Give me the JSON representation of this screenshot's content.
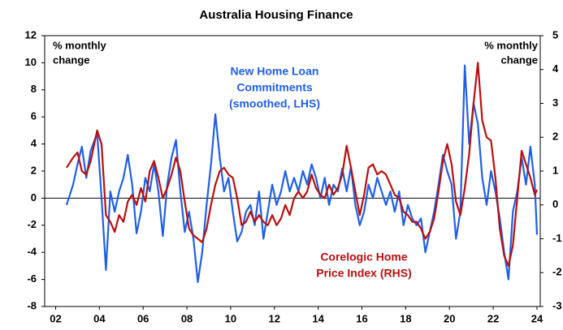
{
  "chart_data": {
    "type": "line",
    "title": "Australia Housing Finance",
    "ylabel_lines": [
      "% monthly",
      "change"
    ],
    "y2label_lines": [
      "% monthly",
      "change"
    ],
    "xlim": [
      2001.5,
      2024.15
    ],
    "xticks": [
      {
        "value": 2002,
        "label": "02"
      },
      {
        "value": 2004,
        "label": "04"
      },
      {
        "value": 2006,
        "label": "06"
      },
      {
        "value": 2008,
        "label": "08"
      },
      {
        "value": 2010,
        "label": "10"
      },
      {
        "value": 2012,
        "label": "12"
      },
      {
        "value": 2014,
        "label": "14"
      },
      {
        "value": 2016,
        "label": "16"
      },
      {
        "value": 2018,
        "label": "18"
      },
      {
        "value": 2020,
        "label": "20"
      },
      {
        "value": 2022,
        "label": "22"
      },
      {
        "value": 2024,
        "label": "24"
      }
    ],
    "ylim": [
      -8,
      12
    ],
    "yticks": [
      -8,
      -6,
      -4,
      -2,
      0,
      2,
      4,
      6,
      8,
      10,
      12
    ],
    "y2lim": [
      -3,
      5
    ],
    "y2ticks": [
      -3,
      -2,
      -1,
      0,
      1,
      2,
      3,
      4,
      5
    ],
    "x": [
      2002.5,
      2002.8,
      2003.0,
      2003.2,
      2003.4,
      2003.6,
      2003.9,
      2004.1,
      2004.3,
      2004.5,
      2004.7,
      2004.9,
      2005.1,
      2005.3,
      2005.5,
      2005.7,
      2005.9,
      2006.1,
      2006.3,
      2006.5,
      2006.7,
      2006.9,
      2007.1,
      2007.3,
      2007.5,
      2007.7,
      2007.9,
      2008.1,
      2008.3,
      2008.5,
      2008.7,
      2008.9,
      2009.1,
      2009.3,
      2009.5,
      2009.7,
      2009.9,
      2010.1,
      2010.3,
      2010.5,
      2010.7,
      2010.9,
      2011.1,
      2011.3,
      2011.5,
      2011.7,
      2011.9,
      2012.1,
      2012.3,
      2012.5,
      2012.7,
      2012.9,
      2013.1,
      2013.3,
      2013.5,
      2013.7,
      2013.9,
      2014.1,
      2014.3,
      2014.5,
      2014.7,
      2014.9,
      2015.1,
      2015.3,
      2015.5,
      2015.7,
      2015.9,
      2016.1,
      2016.3,
      2016.5,
      2016.7,
      2016.9,
      2017.1,
      2017.3,
      2017.5,
      2017.7,
      2017.9,
      2018.1,
      2018.3,
      2018.5,
      2018.7,
      2018.9,
      2019.1,
      2019.3,
      2019.5,
      2019.7,
      2019.9,
      2020.1,
      2020.3,
      2020.5,
      2020.7,
      2020.9,
      2021.1,
      2021.3,
      2021.5,
      2021.7,
      2021.9,
      2022.1,
      2022.3,
      2022.5,
      2022.7,
      2022.9,
      2023.1,
      2023.3,
      2023.5,
      2023.7,
      2023.9,
      2024.0
    ],
    "series": [
      {
        "label_lines": [
          "New Home Loan",
          "Commitments",
          "(smoothed, LHS)"
        ],
        "color": "#1f5fe6",
        "axis": "y",
        "values": [
          -0.5,
          1,
          2.5,
          3.8,
          1.5,
          3.5,
          4.8,
          0,
          -5.3,
          0.5,
          -1,
          0.5,
          1.5,
          3.2,
          1,
          -2.6,
          -1,
          1.5,
          0.5,
          2.5,
          0.5,
          -2.8,
          1,
          3,
          4.3,
          0.5,
          -2.5,
          -1,
          -3,
          -6.2,
          -4,
          -0.5,
          2.5,
          6.2,
          3,
          0.5,
          1.5,
          -1,
          -3.2,
          -2.5,
          -1,
          -0.5,
          -2,
          0.5,
          -3,
          -1,
          1,
          -0.5,
          0.5,
          2,
          0.5,
          1.5,
          0.5,
          2,
          1,
          2.5,
          1.5,
          0,
          1.5,
          -0.5,
          1,
          0.5,
          2.2,
          0.5,
          2.3,
          -0.5,
          -2,
          -1,
          1,
          0,
          1.5,
          0.5,
          -0.5,
          0.5,
          -1,
          0.5,
          -2,
          -0.5,
          -1.5,
          -2,
          -1.5,
          -4,
          -2.5,
          -1,
          1,
          3.2,
          2,
          1,
          -3,
          -1,
          9.8,
          4,
          7,
          5.5,
          1.5,
          -0.5,
          2,
          0.5,
          -1.5,
          -4,
          -6,
          -1,
          0.5,
          3,
          1,
          3.8,
          1,
          -2.7
        ]
      },
      {
        "label_lines": [
          "Corelogic Home",
          "Price Index (RHS)"
        ],
        "color": "#b80f0f",
        "axis": "y2",
        "values": [
          1.1,
          1.4,
          1.55,
          1.0,
          0.9,
          1.3,
          2.2,
          1.8,
          -0.3,
          -0.5,
          -0.8,
          -0.3,
          -0.5,
          0.1,
          0.3,
          0.0,
          0.5,
          0.1,
          1.0,
          1.3,
          0.8,
          0.2,
          0.5,
          0.9,
          1.4,
          1.0,
          0.1,
          -0.7,
          -0.9,
          -1.0,
          -1.1,
          -0.7,
          0.0,
          0.6,
          1.0,
          1.1,
          0.9,
          0.8,
          0.2,
          -0.6,
          -0.5,
          -0.2,
          -0.5,
          -0.3,
          -0.5,
          -0.6,
          -0.3,
          -0.6,
          -0.4,
          0.0,
          -0.3,
          0.2,
          0.4,
          0.2,
          0.4,
          0.9,
          0.5,
          0.3,
          0.2,
          0.6,
          0.3,
          0.5,
          0.9,
          1.75,
          1.1,
          0.4,
          -0.3,
          0.3,
          1.1,
          1.2,
          0.9,
          1.0,
          0.9,
          0.6,
          0.3,
          0.2,
          -0.2,
          -0.3,
          -0.5,
          -0.5,
          -0.7,
          -1.0,
          -0.8,
          -0.4,
          0.4,
          1.3,
          1.8,
          1.2,
          0.1,
          -0.3,
          0.5,
          1.5,
          3.0,
          4.2,
          2.5,
          2.0,
          1.9,
          0.8,
          -0.7,
          -1.5,
          -1.8,
          -1.2,
          0.2,
          1.6,
          1.2,
          0.8,
          0.3,
          0.45
        ]
      }
    ]
  }
}
